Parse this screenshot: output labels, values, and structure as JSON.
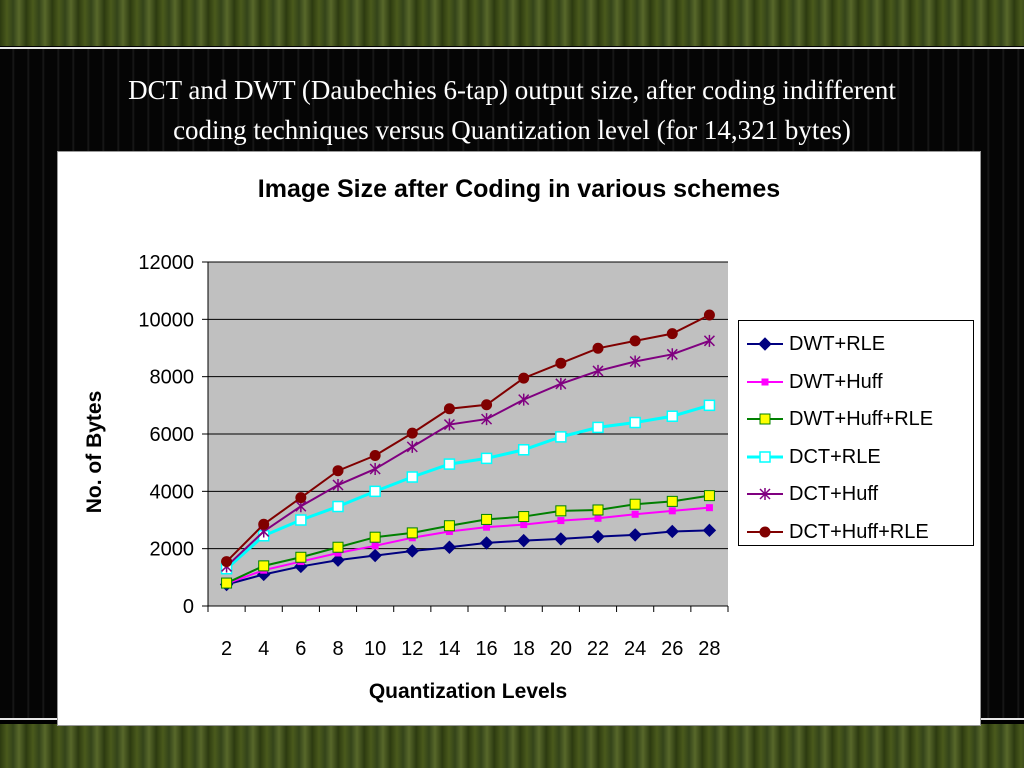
{
  "slide": {
    "title_line1": "DCT and DWT (Daubechies 6-tap) output size, after coding indifferent",
    "title_line2": "coding techniques versus Quantization level (for 14,321 bytes)"
  },
  "colors": {
    "plot_background": "#c0c0c0",
    "DWT+RLE": "#000080",
    "DWT+Huff": "#ff00ff",
    "DWT+Huff+RLE": "#008000",
    "DWT+Huff+RLE_marker": "#ffff00",
    "DCT+RLE": "#00ffff",
    "DCT+Huff": "#800080",
    "DCT+Huff+RLE": "#800000"
  },
  "chart_data": {
    "type": "line",
    "title": "Image Size after Coding in various schemes",
    "xlabel": "Quantization Levels",
    "ylabel": "No. of Bytes",
    "categories": [
      "2",
      "4",
      "6",
      "8",
      "10",
      "12",
      "14",
      "16",
      "18",
      "20",
      "22",
      "24",
      "26",
      "28"
    ],
    "ylim": [
      0,
      12000
    ],
    "yticks": [
      "0",
      "2000",
      "4000",
      "6000",
      "8000",
      "10000",
      "12000"
    ],
    "grid": true,
    "legend_position": "right",
    "series": [
      {
        "name": "DWT+RLE",
        "marker": "diamond",
        "values": [
          750,
          1100,
          1380,
          1600,
          1760,
          1920,
          2050,
          2200,
          2280,
          2340,
          2420,
          2480,
          2600,
          2640
        ]
      },
      {
        "name": "DWT+Huff",
        "marker": "square-small",
        "values": [
          780,
          1250,
          1550,
          1850,
          2100,
          2380,
          2600,
          2750,
          2840,
          2980,
          3060,
          3200,
          3320,
          3430
        ]
      },
      {
        "name": "DWT+Huff+RLE",
        "marker": "square",
        "values": [
          800,
          1400,
          1700,
          2050,
          2400,
          2550,
          2800,
          3020,
          3120,
          3320,
          3350,
          3550,
          3650,
          3850
        ]
      },
      {
        "name": "DCT+RLE",
        "marker": "square-open",
        "values": [
          1300,
          2450,
          3000,
          3470,
          4000,
          4500,
          4950,
          5150,
          5450,
          5900,
          6230,
          6400,
          6620,
          7000
        ]
      },
      {
        "name": "DCT+Huff",
        "marker": "star",
        "values": [
          1380,
          2600,
          3480,
          4220,
          4780,
          5550,
          6330,
          6520,
          7200,
          7750,
          8200,
          8530,
          8780,
          9250
        ]
      },
      {
        "name": "DCT+Huff+RLE",
        "marker": "circle",
        "values": [
          1550,
          2850,
          3780,
          4720,
          5250,
          6030,
          6880,
          7020,
          7950,
          8470,
          8990,
          9250,
          9500,
          10150
        ]
      }
    ]
  }
}
